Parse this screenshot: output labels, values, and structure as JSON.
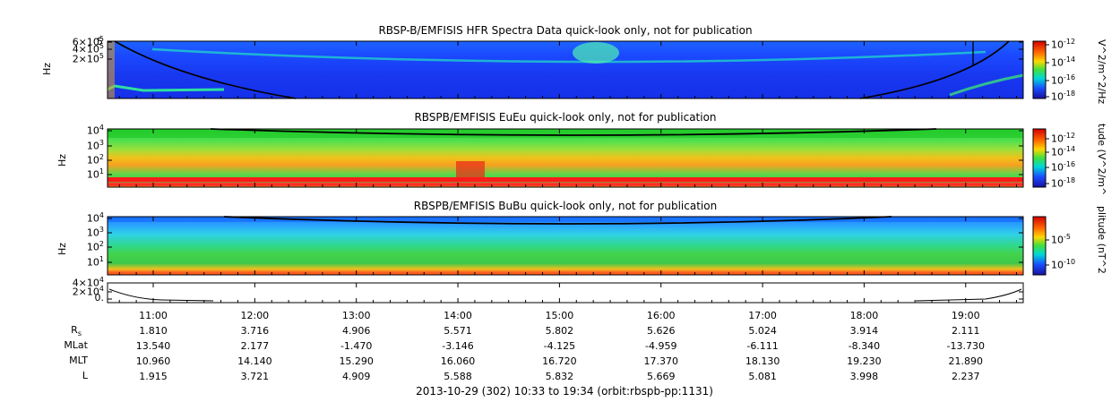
{
  "chart_data": [
    {
      "type": "heatmap",
      "title": "RBSP-B/EMFISIS  HFR Spectra Data quick-look only, not for publication",
      "ylabel": "Hz",
      "y_ticks": [
        "6×10^5",
        "4×10^5",
        "2×10^5"
      ],
      "colorbar_label": "V^2/m^2/Hz",
      "colorbar_ticks": [
        "10^-12",
        "10^-14",
        "10^-16",
        "10^-18"
      ],
      "colorbar_range": [
        -18,
        -12
      ]
    },
    {
      "type": "heatmap",
      "title": "RBSPB/EMFISIS  EuEu quick-look only, not for publication",
      "ylabel": "Hz",
      "y_ticks": [
        "10^4",
        "10^3",
        "10^2",
        "10^1"
      ],
      "colorbar_label": "tude (V^2/m^",
      "colorbar_ticks": [
        "10^-12",
        "10^-14",
        "10^-16",
        "10^-18"
      ],
      "colorbar_range": [
        -18,
        -12
      ]
    },
    {
      "type": "heatmap",
      "title": "RBSPB/EMFISIS  BuBu quick-look only, not for publication",
      "ylabel": "Hz",
      "y_ticks": [
        "10^4",
        "10^3",
        "10^2",
        "10^1"
      ],
      "colorbar_label": "plitude (nT^2",
      "colorbar_ticks": [
        "10^-5",
        "10^-10"
      ]
    },
    {
      "type": "line",
      "y_ticks": [
        "4×10^4",
        "2×10^4",
        "0."
      ],
      "x_range": [
        "10:33",
        "19:34"
      ]
    }
  ],
  "time_axis": {
    "start": "10:33",
    "end": "19:34",
    "labels": [
      "11:00",
      "12:00",
      "13:00",
      "14:00",
      "15:00",
      "16:00",
      "17:00",
      "18:00",
      "19:00"
    ]
  },
  "ephemeris": {
    "rows": [
      {
        "label_main": "R",
        "label_sub": "s",
        "values": [
          "1.810",
          "3.716",
          "4.906",
          "5.571",
          "5.802",
          "5.626",
          "5.024",
          "3.914",
          "2.111"
        ]
      },
      {
        "label_main": "MLat",
        "label_sub": "",
        "values": [
          "13.540",
          "2.177",
          "-1.470",
          "-3.146",
          "-4.125",
          "-4.959",
          "-6.111",
          "-8.340",
          "-13.730"
        ]
      },
      {
        "label_main": "MLT",
        "label_sub": "",
        "values": [
          "10.960",
          "14.140",
          "15.290",
          "16.060",
          "16.720",
          "17.370",
          "18.130",
          "19.230",
          "21.890"
        ]
      },
      {
        "label_main": "L",
        "label_sub": "",
        "values": [
          "1.915",
          "3.721",
          "4.909",
          "5.588",
          "5.832",
          "5.669",
          "5.081",
          "3.998",
          "2.237"
        ]
      }
    ]
  },
  "footer": "2013-10-29 (302) 10:33 to 19:34 (orbit:rbspb-pp:1131)"
}
